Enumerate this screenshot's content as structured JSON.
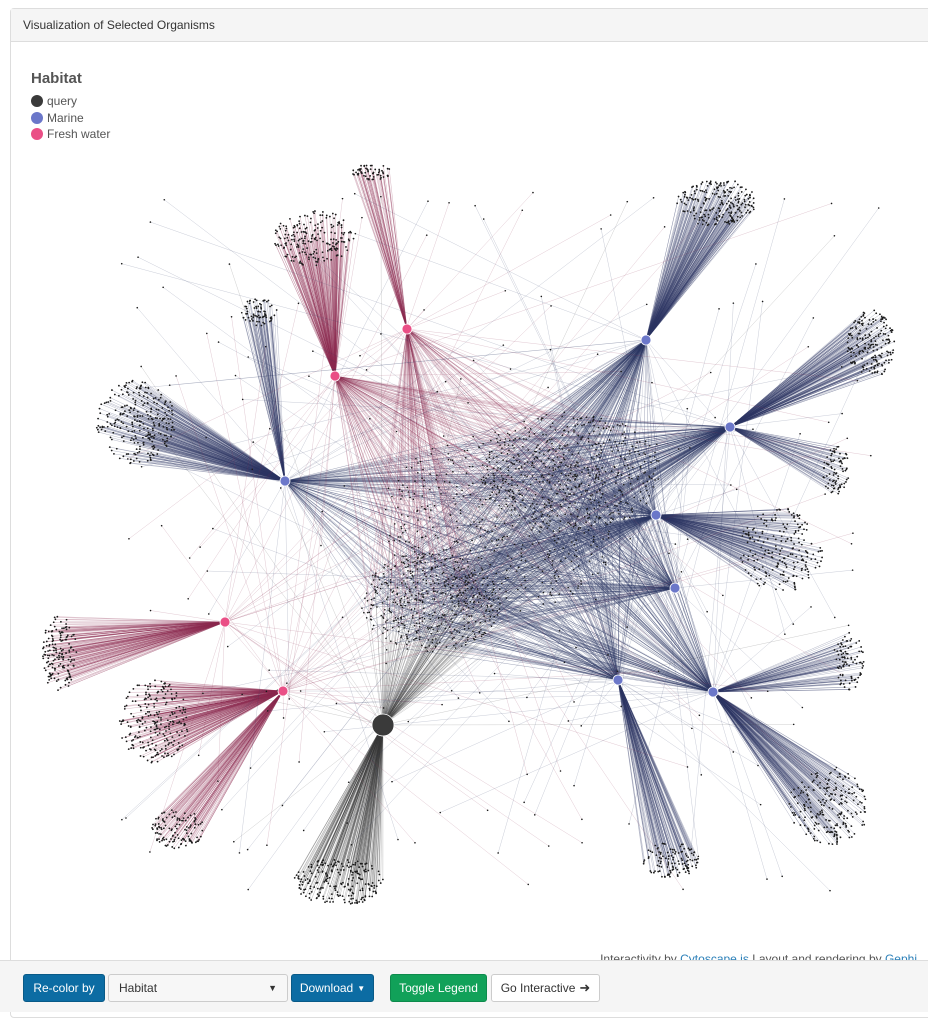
{
  "panel": {
    "title": "Visualization of Selected Organisms"
  },
  "legend": {
    "title": "Habitat",
    "items": [
      {
        "label": "query",
        "color": "#3a3a3a"
      },
      {
        "label": "Marine",
        "color": "#6b77c9"
      },
      {
        "label": "Fresh water",
        "color": "#ea4f86"
      }
    ]
  },
  "colors": {
    "query": "#3a3a3a",
    "marine": "#6b77c9",
    "marine_edge": "#2d3763",
    "fresh": "#ea4f86",
    "fresh_edge": "#8c2a50",
    "leaf": "#1a1a1a"
  },
  "credits": {
    "prefix": "Interactivity by",
    "lib": "Cytoscape.js",
    "middle": "Layout and rendering by",
    "tool": "Gephi"
  },
  "footer": {
    "recolor_label": "Re-color by",
    "recolor_value": "Habitat",
    "download_label": "Download",
    "toggle_legend_label": "Toggle Legend",
    "go_interactive_label": "Go Interactive"
  }
}
